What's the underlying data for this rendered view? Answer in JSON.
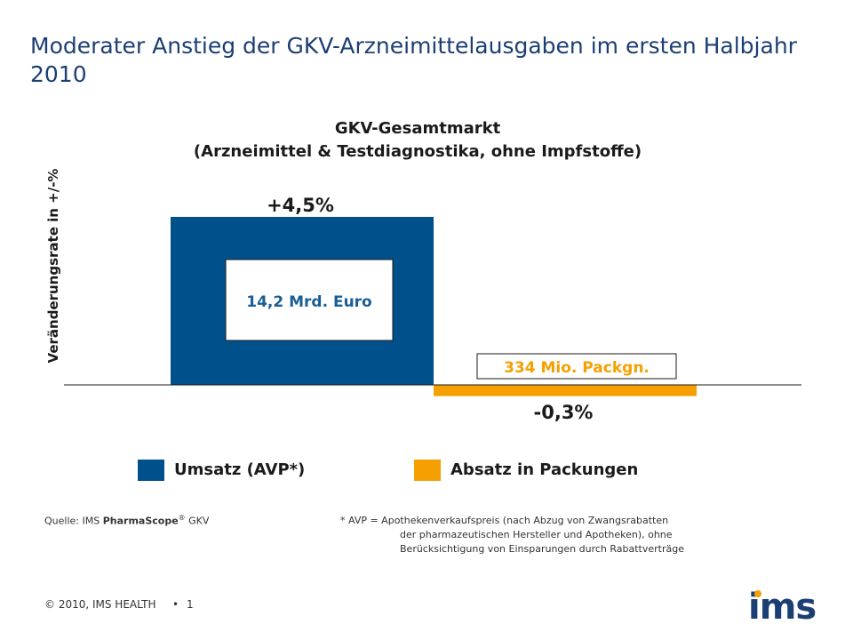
{
  "slide_title": "Moderater Anstieg der GKV-Arzneimittelausgaben im ersten Halbjahr 2010",
  "colors": {
    "umsatz": "#00508c",
    "absatz": "#f5a000",
    "umsatz_text": "#1a5e96",
    "absatz_text": "#f5a000"
  },
  "chart_data": {
    "type": "bar",
    "title": "GKV-Gesamtmarkt",
    "subtitle": "(Arzneimittel & Testdiagnostika, ohne Impfstoffe)",
    "ylabel": "Veränderungsrate in +/-%",
    "categories": [
      "Umsatz (AVP*)",
      "Absatz in Packungen"
    ],
    "series": [
      {
        "name": "Umsatz (AVP*)",
        "values": [
          4.5,
          null
        ],
        "value_label": "+4,5%",
        "inner_label": "14,2 Mrd. Euro"
      },
      {
        "name": "Absatz in Packungen",
        "values": [
          null,
          -0.3
        ],
        "value_label": "-0,3%",
        "inner_label": "334 Mio. Packgn."
      }
    ],
    "ylim": [
      -0.3,
      4.5
    ],
    "grid": false,
    "legend_placement": "bottom"
  },
  "source": {
    "prefix": "Quelle: IMS ",
    "product": "PharmaScope",
    "reg": "®",
    "suffix": " GKV"
  },
  "footnote": {
    "line1": "* AVP = Apothekenverkaufspreis (nach Abzug von Zwangsrabatten",
    "line2": "der pharmazeutischen Hersteller und Apotheken), ohne",
    "line3": "Berücksichtigung von Einsparungen durch Rabattverträge"
  },
  "footer": {
    "copyright": "© 2010, IMS HEALTH",
    "bullet": "•",
    "page": "1"
  },
  "logo": {
    "text": "ims"
  }
}
